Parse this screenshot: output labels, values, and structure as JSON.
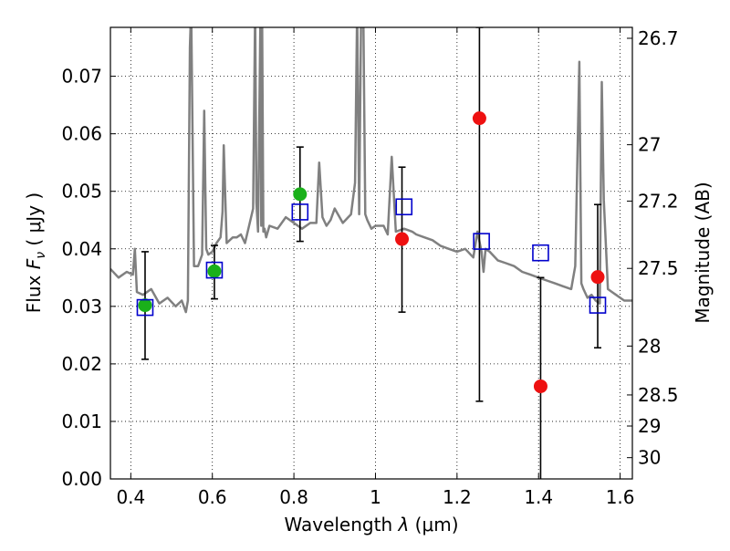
{
  "chart_data": {
    "type": "scatter",
    "title": "",
    "xlabel": "Wavelength  λ (μm)",
    "ylabel": "Flux  F_ν  ( μJy )",
    "ylabel_parts": {
      "prefix": "Flux  ",
      "symbol": "F",
      "sub": "ν",
      "unit": "  ( μJy )"
    },
    "xlabel_parts": {
      "prefix": "Wavelength  ",
      "symbol": "λ",
      "unit": " (μm)"
    },
    "y2label": "Magnitude (AB)",
    "xlim": [
      0.35,
      1.63
    ],
    "ylim": [
      0.0,
      0.0785
    ],
    "x_ticks": [
      0.4,
      0.6,
      0.8,
      1.0,
      1.2,
      1.4,
      1.6
    ],
    "x_tick_labels": [
      "0.4",
      "0.6",
      "0.8",
      "1",
      "1.2",
      "1.4",
      "1.6"
    ],
    "y_ticks": [
      0.0,
      0.01,
      0.02,
      0.03,
      0.04,
      0.05,
      0.06,
      0.07
    ],
    "y_tick_labels": [
      "0.00",
      "0.01",
      "0.02",
      "0.03",
      "0.04",
      "0.05",
      "0.06",
      "0.07"
    ],
    "y2_ticks": [
      {
        "label": "26.7",
        "flux": 0.0766
      },
      {
        "label": "27",
        "flux": 0.0581
      },
      {
        "label": "27.2",
        "flux": 0.0483
      },
      {
        "label": "27.5",
        "flux": 0.0366
      },
      {
        "label": "28",
        "flux": 0.0231
      },
      {
        "label": "28.5",
        "flux": 0.0146
      },
      {
        "label": "29",
        "flux": 0.0092
      },
      {
        "label": "30",
        "flux": 0.0037
      }
    ],
    "grid": true,
    "colors": {
      "model": "#808080",
      "green": "#1ab01a",
      "red": "#ee1111",
      "square": "#0000cc",
      "errorbar": "#000000"
    },
    "series": [
      {
        "style": "line",
        "color": "#808080",
        "x": [
          0.35,
          0.37,
          0.39,
          0.405,
          0.41,
          0.415,
          0.43,
          0.45,
          0.47,
          0.49,
          0.51,
          0.525,
          0.535,
          0.54,
          0.545,
          0.548,
          0.555,
          0.56,
          0.565,
          0.575,
          0.58,
          0.585,
          0.59,
          0.6,
          0.61,
          0.62,
          0.625,
          0.628,
          0.635,
          0.65,
          0.66,
          0.67,
          0.68,
          0.7,
          0.705,
          0.708,
          0.712,
          0.718,
          0.72,
          0.722,
          0.725,
          0.728,
          0.732,
          0.74,
          0.76,
          0.78,
          0.8,
          0.82,
          0.84,
          0.855,
          0.862,
          0.87,
          0.88,
          0.89,
          0.9,
          0.92,
          0.94,
          0.95,
          0.955,
          0.96,
          0.965,
          0.97,
          0.975,
          0.98,
          0.99,
          1.0,
          1.02,
          1.03,
          1.04,
          1.05,
          1.07,
          1.09,
          1.1,
          1.12,
          1.14,
          1.16,
          1.18,
          1.2,
          1.22,
          1.24,
          1.25,
          1.26,
          1.265,
          1.27,
          1.28,
          1.3,
          1.32,
          1.34,
          1.36,
          1.38,
          1.4,
          1.42,
          1.44,
          1.46,
          1.48,
          1.49,
          1.5,
          1.505,
          1.51,
          1.52,
          1.53,
          1.54,
          1.55,
          1.555,
          1.56,
          1.57,
          1.58,
          1.59,
          1.6,
          1.61,
          1.63
        ],
        "y": [
          0.0365,
          0.035,
          0.036,
          0.0355,
          0.04,
          0.0325,
          0.032,
          0.033,
          0.0305,
          0.0315,
          0.03,
          0.031,
          0.029,
          0.031,
          0.075,
          0.082,
          0.037,
          0.037,
          0.037,
          0.039,
          0.064,
          0.04,
          0.039,
          0.0395,
          0.041,
          0.042,
          0.0465,
          0.058,
          0.041,
          0.042,
          0.042,
          0.0425,
          0.041,
          0.047,
          0.082,
          0.048,
          0.043,
          0.082,
          0.044,
          0.082,
          0.043,
          0.0435,
          0.042,
          0.044,
          0.0435,
          0.0455,
          0.0445,
          0.0435,
          0.0445,
          0.0445,
          0.055,
          0.0455,
          0.044,
          0.045,
          0.047,
          0.0445,
          0.046,
          0.0515,
          0.082,
          0.046,
          0.082,
          0.082,
          0.046,
          0.045,
          0.0435,
          0.044,
          0.044,
          0.0425,
          0.056,
          0.043,
          0.0435,
          0.043,
          0.0425,
          0.042,
          0.0415,
          0.0405,
          0.04,
          0.0395,
          0.04,
          0.0385,
          0.043,
          0.0395,
          0.036,
          0.04,
          0.0395,
          0.038,
          0.0375,
          0.037,
          0.036,
          0.0355,
          0.035,
          0.0345,
          0.034,
          0.0335,
          0.033,
          0.037,
          0.0725,
          0.034,
          0.033,
          0.0315,
          0.032,
          0.031,
          0.0305,
          0.069,
          0.0485,
          0.033,
          0.0325,
          0.032,
          0.0315,
          0.031,
          0.031
        ]
      },
      {
        "style": "errorbar",
        "color": "#000000",
        "bars": [
          {
            "x": 0.435,
            "ylo": 0.0208,
            "yhi": 0.0395
          },
          {
            "x": 0.605,
            "ylo": 0.0313,
            "yhi": 0.0406
          },
          {
            "x": 0.815,
            "ylo": 0.0413,
            "yhi": 0.0577
          },
          {
            "x": 1.065,
            "ylo": 0.029,
            "yhi": 0.0542
          },
          {
            "x": 1.255,
            "ylo": 0.0135,
            "yhi": 0.0785
          },
          {
            "x": 1.405,
            "ylo": -0.005,
            "yhi": 0.035
          },
          {
            "x": 1.545,
            "ylo": 0.0228,
            "yhi": 0.0477
          }
        ]
      },
      {
        "style": "circle",
        "color": "#1ab01a",
        "x": [
          0.435,
          0.605,
          0.815
        ],
        "y": [
          0.0302,
          0.0361,
          0.0495
        ]
      },
      {
        "style": "circle",
        "color": "#ee1111",
        "x": [
          1.065,
          1.255,
          1.405,
          1.545
        ],
        "y": [
          0.0417,
          0.0627,
          0.0161,
          0.0351
        ]
      },
      {
        "style": "square",
        "color": "#0000cc",
        "x": [
          0.435,
          0.605,
          0.815,
          1.07,
          1.26,
          1.405,
          1.545
        ],
        "y": [
          0.0298,
          0.0363,
          0.0464,
          0.0473,
          0.0413,
          0.0393,
          0.0302
        ]
      }
    ]
  }
}
